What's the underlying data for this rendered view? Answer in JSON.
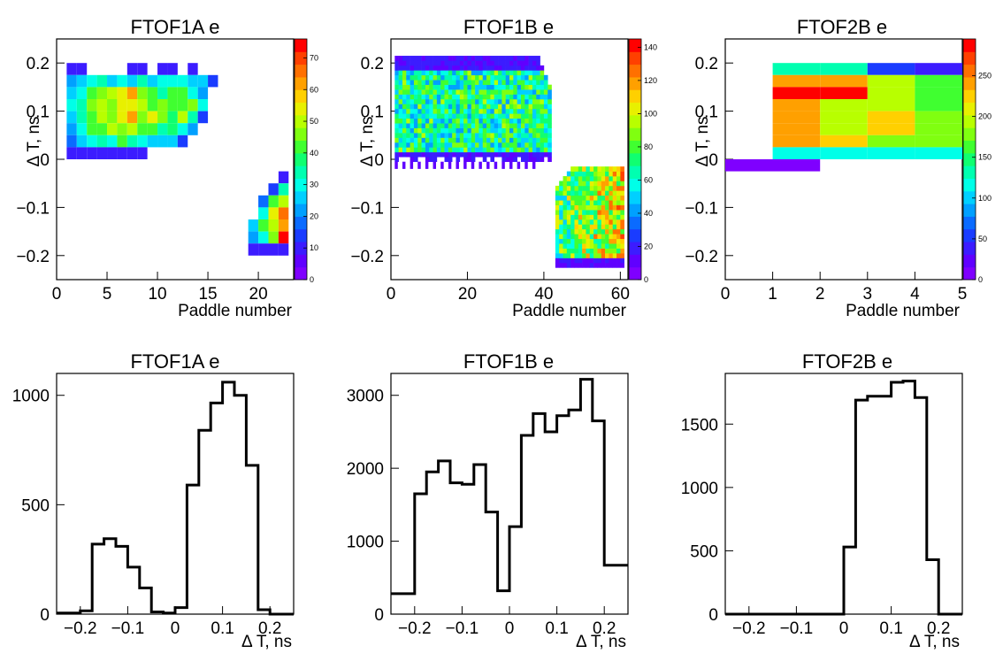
{
  "chart_data": [
    {
      "type": "heatmap",
      "title": "FTOF1A e",
      "xlabel": "Paddle number",
      "ylabel": "Δ T, ns",
      "xlim": [
        0,
        23.5
      ],
      "ylim": [
        -0.25,
        0.25
      ],
      "xticks": [
        "0",
        "5",
        "10",
        "15",
        "20"
      ],
      "yticks": [
        "−0.2",
        "−0.1",
        "0",
        "0.1",
        "0.2"
      ],
      "zlim": [
        0,
        76
      ],
      "zticks": [
        "0",
        "10",
        "20",
        "30",
        "40",
        "50",
        "60",
        "70"
      ],
      "ybin_width": 0.025,
      "ybins": [
        0.175,
        0.15,
        0.125,
        0.1,
        0.075,
        0.05,
        0.025,
        0.0
      ],
      "xbins": [
        1,
        2,
        3,
        4,
        5,
        6,
        7,
        8,
        9,
        10,
        11,
        12,
        13,
        14,
        15
      ],
      "z": [
        [
          8,
          8,
          0,
          0,
          0,
          0,
          8,
          8,
          0,
          8,
          8,
          0,
          8,
          0,
          0
        ],
        [
          20,
          25,
          30,
          35,
          25,
          30,
          25,
          35,
          25,
          28,
          30,
          30,
          25,
          25,
          12
        ],
        [
          25,
          30,
          40,
          45,
          50,
          55,
          62,
          45,
          40,
          35,
          40,
          40,
          30,
          22,
          0
        ],
        [
          30,
          35,
          45,
          50,
          45,
          55,
          55,
          50,
          40,
          45,
          40,
          40,
          45,
          30,
          0
        ],
        [
          25,
          35,
          42,
          50,
          45,
          55,
          60,
          45,
          52,
          45,
          38,
          50,
          35,
          15,
          0
        ],
        [
          20,
          30,
          40,
          42,
          48,
          45,
          50,
          40,
          40,
          35,
          38,
          30,
          22,
          0,
          0
        ],
        [
          18,
          25,
          30,
          35,
          30,
          40,
          35,
          30,
          25,
          25,
          25,
          12,
          0,
          0,
          0
        ],
        [
          8,
          8,
          8,
          8,
          8,
          8,
          8,
          8,
          0,
          0,
          0,
          0,
          0,
          0,
          0
        ]
      ],
      "ybins_neg": [
        -0.05,
        -0.075,
        -0.1,
        -0.125,
        -0.15,
        -0.175,
        -0.2
      ],
      "xbins_neg": [
        19,
        20,
        21,
        22
      ],
      "z_neg": [
        [
          0,
          0,
          0,
          8
        ],
        [
          0,
          0,
          15,
          35
        ],
        [
          0,
          18,
          40,
          50
        ],
        [
          0,
          30,
          55,
          65
        ],
        [
          25,
          40,
          50,
          60
        ],
        [
          22,
          30,
          45,
          75
        ],
        [
          8,
          8,
          8,
          8
        ]
      ]
    },
    {
      "type": "heatmap",
      "title": "FTOF1B e",
      "xlabel": "Paddle number",
      "ylabel": "Δ T, ns",
      "xlim": [
        0,
        62
      ],
      "ylim": [
        -0.25,
        0.25
      ],
      "xticks": [
        "0",
        "20",
        "40",
        "60"
      ],
      "yticks": [
        "−0.2",
        "−0.1",
        "0",
        "0.1",
        "0.2"
      ],
      "zlim": [
        0,
        145
      ],
      "zticks": [
        "0",
        "20",
        "40",
        "60",
        "80",
        "100",
        "120",
        "140"
      ],
      "ytop": 0.22,
      "ybottom_pos": -0.005,
      "xmax_pos": 42,
      "ytop_neg": -0.0,
      "ybottom_neg": -0.225,
      "xmin_neg": 43,
      "xmax_neg": 61
    },
    {
      "type": "heatmap",
      "title": "FTOF2B e",
      "xlabel": "Paddle number",
      "ylabel": "Δ T, ns",
      "xlim": [
        0,
        5
      ],
      "ylim": [
        -0.25,
        0.25
      ],
      "xticks": [
        "0",
        "1",
        "2",
        "3",
        "4",
        "5"
      ],
      "yticks": [
        "−0.2",
        "−0.1",
        "0",
        "0.1",
        "0.2"
      ],
      "zlim": [
        0,
        295
      ],
      "zticks": [
        "0",
        "50",
        "100",
        "150",
        "200",
        "250"
      ],
      "ybin_width": 0.025,
      "ybins": [
        0.175,
        0.15,
        0.125,
        0.1,
        0.075,
        0.05,
        0.025,
        0.0
      ],
      "xbins": [
        1,
        2,
        3,
        4
      ],
      "z": [
        [
          130,
          130,
          60,
          40
        ],
        [
          240,
          240,
          190,
          170
        ],
        [
          285,
          285,
          190,
          170
        ],
        [
          240,
          190,
          195,
          170
        ],
        [
          240,
          190,
          230,
          175
        ],
        [
          240,
          190,
          230,
          185
        ],
        [
          240,
          230,
          175,
          185
        ],
        [
          120,
          120,
          120,
          120
        ]
      ],
      "neg_band": {
        "x0": 0,
        "x1": 2,
        "y": -0.025,
        "z": 5
      }
    },
    {
      "type": "bar",
      "style": "step",
      "title": "FTOF1A e",
      "xlabel": "Δ T, ns",
      "ylabel": "",
      "xlim": [
        -0.25,
        0.25
      ],
      "ylim": [
        0,
        1100
      ],
      "xticks": [
        "−0.2",
        "−0.1",
        "0",
        "0.1",
        "0.2"
      ],
      "yticks": [
        "0",
        "500",
        "1000"
      ],
      "bin_width": 0.025,
      "bin_edges_start": -0.225,
      "values": [
        5,
        15,
        320,
        345,
        310,
        215,
        120,
        10,
        5,
        30,
        590,
        840,
        965,
        1060,
        1000,
        680,
        20,
        0
      ]
    },
    {
      "type": "bar",
      "style": "step",
      "title": "FTOF1B e",
      "xlabel": "Δ T, ns",
      "ylabel": "",
      "xlim": [
        -0.25,
        0.25
      ],
      "ylim": [
        0,
        3300
      ],
      "xticks": [
        "−0.2",
        "−0.1",
        "0",
        "0.1",
        "0.2"
      ],
      "yticks": [
        "0",
        "1000",
        "2000",
        "3000"
      ],
      "bin_width": 0.025,
      "bin_edges_start": -0.225,
      "values": [
        280,
        1650,
        1950,
        2100,
        1800,
        1780,
        2050,
        1400,
        320,
        1200,
        2450,
        2750,
        2500,
        2720,
        2800,
        3220,
        2650,
        670
      ]
    },
    {
      "type": "bar",
      "style": "step",
      "title": "FTOF2B e",
      "xlabel": "Δ T, ns",
      "ylabel": "",
      "xlim": [
        -0.25,
        0.25
      ],
      "ylim": [
        0,
        1900
      ],
      "xticks": [
        "−0.2",
        "−0.1",
        "0",
        "0.1",
        "0.2"
      ],
      "yticks": [
        "0",
        "500",
        "1000",
        "1500"
      ],
      "bin_width": 0.025,
      "bin_edges_start": -0.225,
      "values": [
        0,
        0,
        0,
        0,
        0,
        0,
        0,
        0,
        0,
        530,
        1690,
        1720,
        1720,
        1830,
        1840,
        1710,
        430,
        0
      ]
    }
  ]
}
